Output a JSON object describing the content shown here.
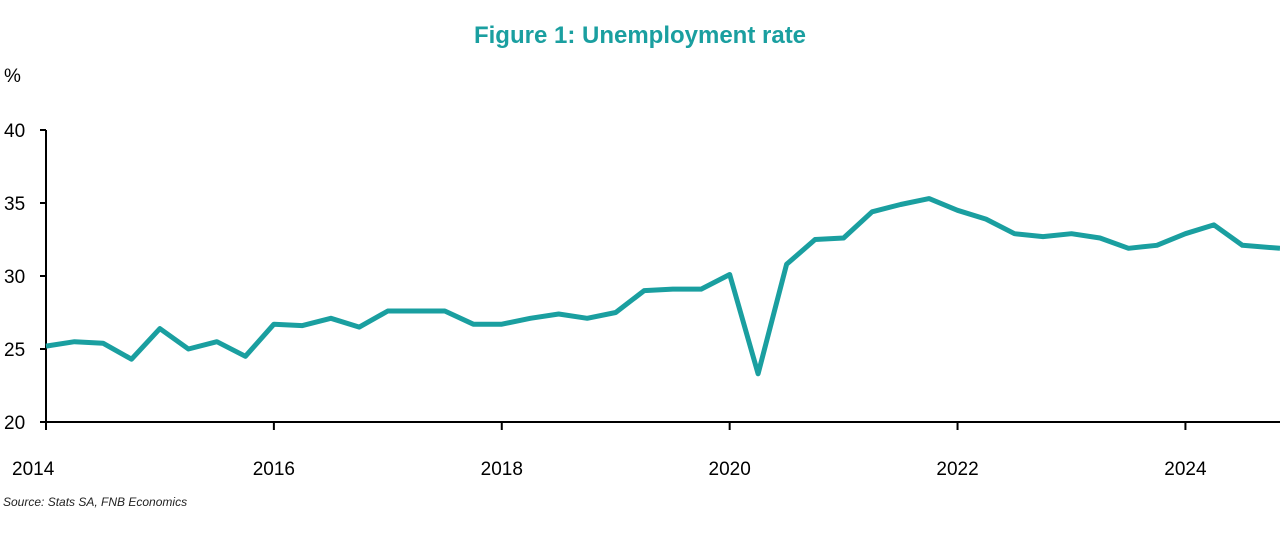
{
  "title": "Figure 1: Unemployment rate",
  "y_unit_label": "%",
  "source": "Source: Stats SA, FNB Economics",
  "colors": {
    "line": "#1a9fa0",
    "title": "#1a9fa0",
    "axis": "#000000"
  },
  "chart_data": {
    "type": "line",
    "title": "Figure 1: Unemployment rate",
    "xlabel": "",
    "ylabel": "%",
    "xlim": [
      2014,
      2024.83
    ],
    "ylim": [
      20,
      40
    ],
    "x_ticks": [
      2014,
      2016,
      2018,
      2020,
      2022,
      2024
    ],
    "x_tick_labels": [
      "2014",
      "2016",
      "2018",
      "2020",
      "2022",
      "2024"
    ],
    "y_ticks": [
      20,
      25,
      30,
      35,
      40
    ],
    "y_tick_labels": [
      "20",
      "25",
      "30",
      "35",
      "40"
    ],
    "grid": false,
    "series": [
      {
        "name": "",
        "x": [
          2014.0,
          2014.25,
          2014.5,
          2014.75,
          2015.0,
          2015.25,
          2015.5,
          2015.75,
          2016.0,
          2016.25,
          2016.5,
          2016.75,
          2017.0,
          2017.25,
          2017.5,
          2017.75,
          2018.0,
          2018.25,
          2018.5,
          2018.75,
          2019.0,
          2019.25,
          2019.5,
          2019.75,
          2020.0,
          2020.25,
          2020.5,
          2020.75,
          2021.0,
          2021.25,
          2021.5,
          2021.75,
          2022.0,
          2022.25,
          2022.5,
          2022.75,
          2023.0,
          2023.25,
          2023.5,
          2023.75,
          2024.0,
          2024.25,
          2024.5,
          2024.83
        ],
        "y": [
          25.2,
          25.5,
          25.4,
          24.3,
          26.4,
          25.0,
          25.5,
          24.5,
          26.7,
          26.6,
          27.1,
          26.5,
          27.6,
          27.6,
          27.6,
          26.7,
          26.7,
          27.1,
          27.4,
          27.1,
          27.5,
          29.0,
          29.1,
          29.1,
          30.1,
          23.3,
          30.8,
          32.5,
          32.6,
          34.4,
          34.9,
          35.3,
          34.5,
          33.9,
          32.9,
          32.7,
          32.9,
          32.6,
          31.9,
          32.1,
          32.9,
          33.5,
          32.1,
          31.9
        ]
      }
    ]
  }
}
